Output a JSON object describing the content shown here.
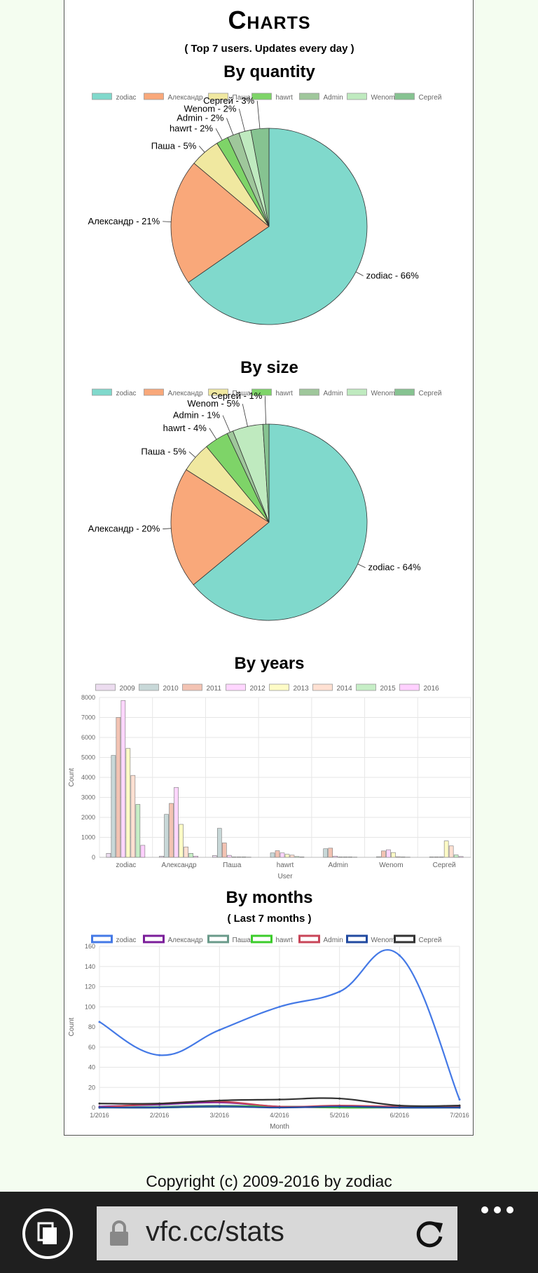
{
  "page": {
    "title": "Charts",
    "subtitle": "( Top 7 users. Updates every day )",
    "footer": "Copyright (c) 2009-2016 by zodiac"
  },
  "sections": {
    "quantity": "By quantity",
    "size": "By size",
    "years": "By years",
    "months": "By months",
    "months_sub": "( Last 7 months )"
  },
  "browser": {
    "url": "vfc.cc/stats",
    "icons": [
      "tabs-icon",
      "lock-icon",
      "refresh-icon",
      "more-icon"
    ]
  },
  "colors": {
    "users": [
      "#80d9cc",
      "#f9a87a",
      "#f0e8a0",
      "#7ed468",
      "#9fc79b",
      "#bfeabf",
      "#86c391"
    ],
    "years": [
      "#ecdcef",
      "#c8d8d8",
      "#f3c3b3",
      "#ffd6ff",
      "#fdfbc6",
      "#ffe0d2",
      "#c6eec6",
      "#ffd0ff"
    ],
    "months": [
      "#4479e6",
      "#7b1e9a",
      "#6a9a8a",
      "#3ccc2b",
      "#c84558",
      "#224aa0",
      "#333333"
    ]
  },
  "chart_data": [
    {
      "type": "pie",
      "title": "By quantity",
      "labels": [
        "zodiac",
        "Александр",
        "Паша",
        "hawrt",
        "Admin",
        "Wenom",
        "Сергей"
      ],
      "values": [
        66,
        21,
        5,
        2,
        2,
        2,
        3
      ],
      "slice_labels": [
        "zodiac - 66%",
        "Александр - 21%",
        "Паша - 5%",
        "hawrt - 2%",
        "Admin - 2%",
        "Wenom - 2%",
        "Сергей - 3%"
      ],
      "legend": "top"
    },
    {
      "type": "pie",
      "title": "By size",
      "labels": [
        "zodiac",
        "Александр",
        "Паша",
        "hawrt",
        "Admin",
        "Wenom",
        "Сергей"
      ],
      "values": [
        64,
        20,
        5,
        4,
        1,
        5,
        1
      ],
      "slice_labels": [
        "zodiac - 64%",
        "Александр - 20%",
        "Паша - 5%",
        "hawrt - 4%",
        "Admin - 1%",
        "Wenom - 5%",
        "Сергей - 1%"
      ],
      "legend": "top"
    },
    {
      "type": "bar",
      "title": "By years",
      "categories": [
        "zodiac",
        "Александр",
        "Паша",
        "hawrt",
        "Admin",
        "Wenom",
        "Сергей"
      ],
      "xlabel": "User",
      "ylabel": "Count",
      "ylim": [
        0,
        8000
      ],
      "yticks": [
        0,
        1000,
        2000,
        3000,
        4000,
        5000,
        6000,
        7000,
        8000
      ],
      "grid": true,
      "legend": "top",
      "series": [
        {
          "name": "2009",
          "values": [
            200,
            60,
            90,
            0,
            0,
            0,
            0
          ]
        },
        {
          "name": "2010",
          "values": [
            5100,
            2150,
            1450,
            220,
            430,
            30,
            20
          ]
        },
        {
          "name": "2011",
          "values": [
            7000,
            2700,
            720,
            330,
            460,
            320,
            20
          ]
        },
        {
          "name": "2012",
          "values": [
            7850,
            3500,
            100,
            220,
            60,
            380,
            20
          ]
        },
        {
          "name": "2013",
          "values": [
            5450,
            1650,
            20,
            150,
            20,
            240,
            820
          ]
        },
        {
          "name": "2014",
          "values": [
            4100,
            520,
            20,
            110,
            20,
            30,
            570
          ]
        },
        {
          "name": "2015",
          "values": [
            2650,
            200,
            20,
            40,
            20,
            20,
            120
          ]
        },
        {
          "name": "2016",
          "values": [
            600,
            60,
            10,
            20,
            10,
            10,
            40
          ]
        }
      ]
    },
    {
      "type": "line",
      "title": "By months",
      "subtitle": "( Last 7 months )",
      "x": [
        "1/2016",
        "2/2016",
        "3/2016",
        "4/2016",
        "5/2016",
        "6/2016",
        "7/2016"
      ],
      "xlabel": "Month",
      "ylabel": "Count",
      "ylim": [
        0,
        160
      ],
      "yticks": [
        0,
        20,
        40,
        60,
        80,
        100,
        120,
        140,
        160
      ],
      "grid": true,
      "legend": "top",
      "series": [
        {
          "name": "zodiac",
          "values": [
            85,
            52,
            77,
            100,
            115,
            151,
            8
          ]
        },
        {
          "name": "Александр",
          "values": [
            1,
            3,
            5,
            1,
            0,
            0,
            0
          ]
        },
        {
          "name": "Паша",
          "values": [
            0,
            1,
            2,
            1,
            1,
            0,
            0
          ]
        },
        {
          "name": "hawrt",
          "values": [
            0,
            0,
            1,
            1,
            0,
            0,
            0
          ]
        },
        {
          "name": "Admin",
          "values": [
            0,
            4,
            6,
            1,
            2,
            1,
            1
          ]
        },
        {
          "name": "Wenom",
          "values": [
            0,
            0,
            1,
            0,
            1,
            0,
            0
          ]
        },
        {
          "name": "Сергей",
          "values": [
            4,
            4,
            7,
            8,
            9,
            2,
            2
          ]
        }
      ]
    }
  ]
}
